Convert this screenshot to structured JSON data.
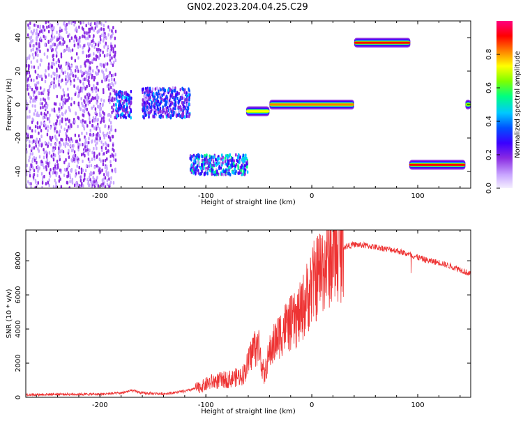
{
  "title": "GN02.2023.204.04.25.C29",
  "chart_data": [
    {
      "type": "heatmap",
      "xlabel": "Height of straight line (km)",
      "ylabel": "Frequency (Hz)",
      "xlim": [
        -270,
        150
      ],
      "ylim": [
        -50,
        50
      ],
      "xticks": [
        -200,
        -100,
        0,
        100
      ],
      "yticks": [
        -40,
        -20,
        0,
        20,
        40
      ],
      "colorbar": {
        "label": "Normalized spectral amplitude",
        "range": [
          0,
          1
        ],
        "ticks": [
          "0.0",
          "0.2",
          "0.4",
          "0.6",
          "0.8"
        ],
        "colormap": [
          "#f5f0ff",
          "#c9a6ff",
          "#8a2be2",
          "#3a00ff",
          "#0050ff",
          "#00c8ff",
          "#00ff80",
          "#7fff00",
          "#ffff00",
          "#ff8000",
          "#ff0000",
          "#ff0080"
        ]
      },
      "features": [
        {
          "x_start": -270,
          "x_end": -185,
          "freq_min": -50,
          "freq_max": 50,
          "amplitude": 0.15
        },
        {
          "x_start": -185,
          "x_end": -170,
          "freq_min": -8,
          "freq_max": 8,
          "amplitude": 0.35
        },
        {
          "x_start": -160,
          "x_end": -115,
          "freq_min": -8,
          "freq_max": 10,
          "amplitude": 0.3
        },
        {
          "x_start": -115,
          "x_end": -60,
          "freq_min": -42,
          "freq_max": -30,
          "amplitude": 0.4
        },
        {
          "x_start": -62,
          "x_end": -40,
          "freq_center": -4,
          "amplitude": 0.75
        },
        {
          "x_start": -40,
          "x_end": 40,
          "freq_center": 0,
          "amplitude": 0.85
        },
        {
          "x_start": 40,
          "x_end": 93,
          "freq_center": 37,
          "amplitude": 0.95
        },
        {
          "x_start": 92,
          "x_end": 145,
          "freq_center": -36,
          "amplitude": 0.9
        },
        {
          "x_start": 145,
          "x_end": 150,
          "freq_center": 0,
          "amplitude": 0.6
        }
      ]
    },
    {
      "type": "line",
      "xlabel": "Height of straight line (km)",
      "ylabel": "SNR (10 * v/v)",
      "xlim": [
        -270,
        150
      ],
      "ylim": [
        0,
        9800
      ],
      "xticks": [
        -200,
        -100,
        0,
        100
      ],
      "yticks": [
        0,
        2000,
        4000,
        6000,
        8000
      ],
      "color": "#ee3333",
      "series": [
        {
          "x": [
            -270,
            -240,
            -200,
            -180,
            -170,
            -160,
            -140,
            -120,
            -105,
            -95,
            -85,
            -75,
            -65,
            -60,
            -55,
            -50,
            -45,
            -40,
            -35,
            -30,
            -25,
            -20,
            -15,
            -10,
            -5,
            0,
            10,
            20,
            30,
            40,
            50,
            60,
            70,
            80,
            90,
            100,
            110,
            120,
            130,
            140,
            150
          ],
          "y": [
            150,
            180,
            180,
            250,
            400,
            250,
            200,
            350,
            600,
            900,
            1000,
            1100,
            1300,
            2000,
            2900,
            3000,
            1200,
            2600,
            3200,
            3700,
            4100,
            4300,
            4500,
            5000,
            5800,
            6500,
            7600,
            8400,
            8800,
            8950,
            8900,
            8800,
            8700,
            8600,
            8400,
            8200,
            8000,
            7900,
            7700,
            7500,
            7200
          ]
        }
      ]
    }
  ]
}
